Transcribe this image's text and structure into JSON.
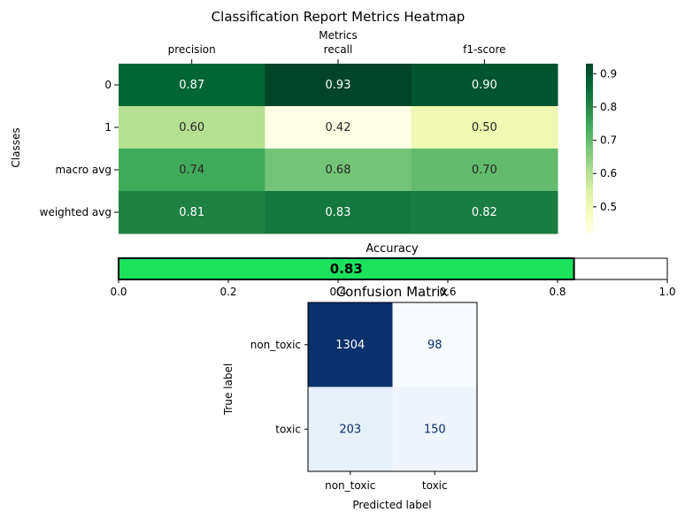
{
  "chart_data": [
    {
      "type": "heatmap",
      "title": "Classification Report Metrics Heatmap",
      "xlabel": "Metrics",
      "ylabel": "Classes",
      "columns": [
        "precision",
        "recall",
        "f1-score"
      ],
      "rows": [
        "0",
        "1",
        "macro avg",
        "weighted avg"
      ],
      "values": [
        [
          0.87,
          0.93,
          0.9
        ],
        [
          0.6,
          0.42,
          0.5
        ],
        [
          0.74,
          0.68,
          0.7
        ],
        [
          0.81,
          0.83,
          0.82
        ]
      ],
      "colormap": "YlGn",
      "colorbar": {
        "ticks": [
          "0.5",
          "0.6",
          "0.7",
          "0.8",
          "0.9"
        ],
        "range": [
          0.42,
          0.93
        ]
      }
    },
    {
      "type": "bar",
      "orientation": "horizontal",
      "title": "Accuracy",
      "value": 0.83,
      "value_label": "0.83",
      "bar_color": "#1ce25d",
      "xlim": [
        0,
        1
      ],
      "xticks": [
        "0.0",
        "0.2",
        "0.4",
        "0.6",
        "0.8",
        "1.0"
      ]
    },
    {
      "type": "heatmap",
      "title": "Confusion Matrix",
      "xlabel": "Predicted label",
      "ylabel": "True label",
      "columns": [
        "non_toxic",
        "toxic"
      ],
      "rows": [
        "non_toxic",
        "toxic"
      ],
      "values": [
        [
          1304,
          98
        ],
        [
          203,
          150
        ]
      ],
      "colormap": "Blues"
    }
  ]
}
